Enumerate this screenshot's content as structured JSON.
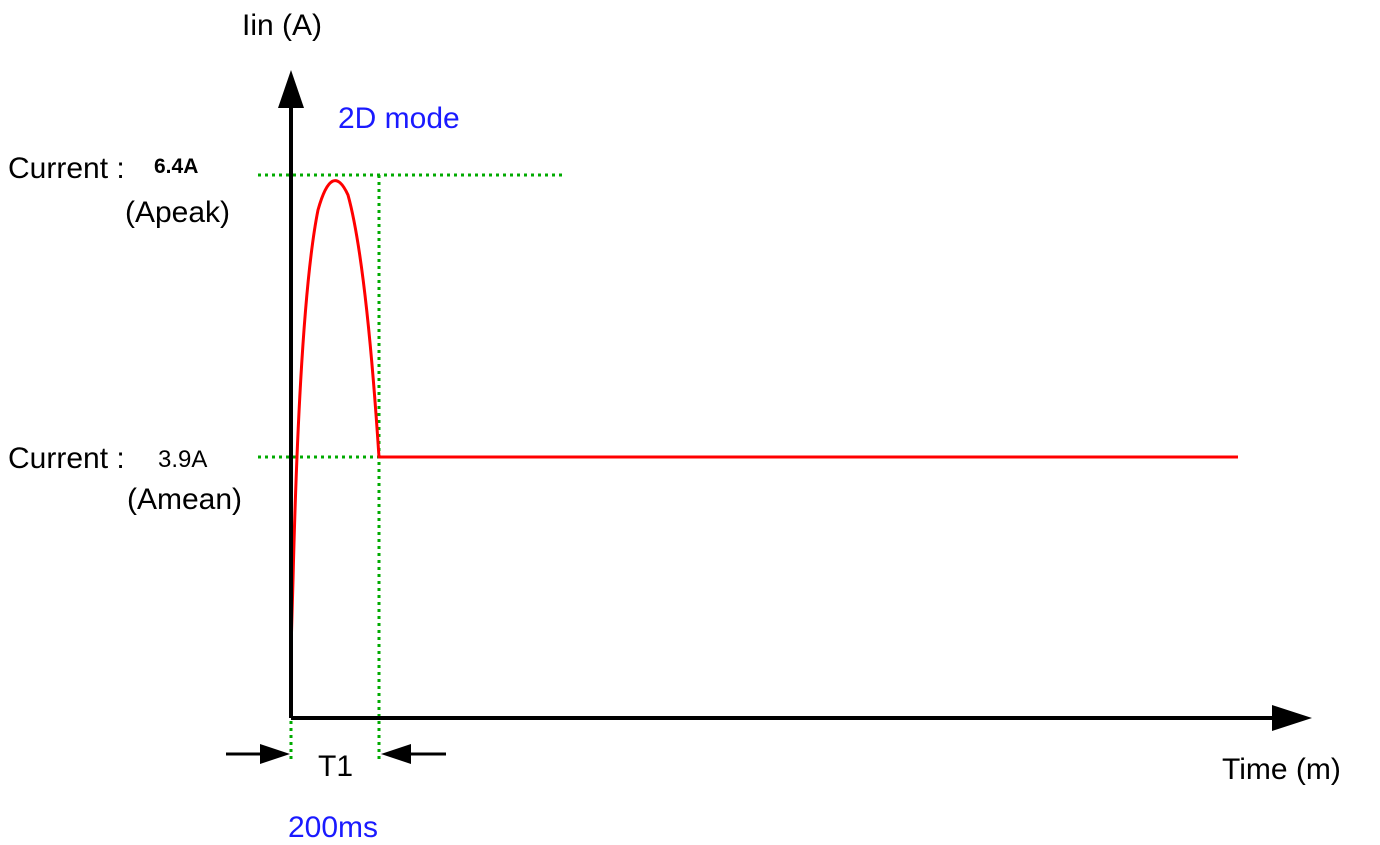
{
  "diagram": {
    "y_axis_label": "Iin (A)",
    "x_axis_label": "Time (m)",
    "mode_label": "2D mode",
    "peak": {
      "prefix": "Current :",
      "value": "6.4A",
      "name": "(Apeak)"
    },
    "mean": {
      "prefix": "Current :",
      "value": "3.9A",
      "name": "(Amean)"
    },
    "interval": {
      "label": "T1",
      "duration": "200ms"
    },
    "colors": {
      "axis": "#000000",
      "waveform": "#ff0000",
      "guide": "#00aa00",
      "mode_text": "#1a1aff",
      "duration_text": "#1a1aff"
    }
  }
}
